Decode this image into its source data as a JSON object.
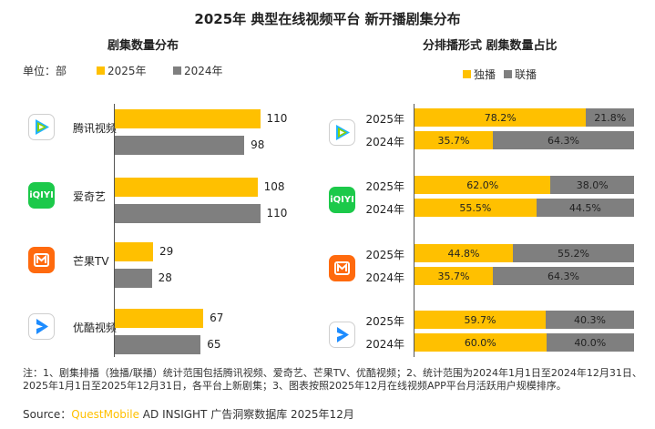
{
  "title": "2025年 典型在线视频平台 新开播剧集分布",
  "left_panel": {
    "title": "剧集数量分布",
    "unit_label": "单位：部",
    "legend": [
      {
        "label": "2025年",
        "color": "#ffc000"
      },
      {
        "label": "2024年",
        "color": "#7f7f7f"
      }
    ]
  },
  "right_panel": {
    "title": "分排播形式 剧集数量占比",
    "legend": [
      {
        "label": "独播",
        "color": "#ffc000"
      },
      {
        "label": "联播",
        "color": "#7f7f7f"
      }
    ]
  },
  "platforms": [
    {
      "name": "腾讯视频",
      "icon": "tencent-video-icon"
    },
    {
      "name": "爱奇艺",
      "icon": "iqiyi-icon",
      "icon_text": "iQIYI"
    },
    {
      "name": "芒果TV",
      "icon": "mango-tv-icon"
    },
    {
      "name": "优酷视频",
      "icon": "youku-icon"
    }
  ],
  "chart_data": [
    {
      "type": "bar",
      "title": "剧集数量分布",
      "categories": [
        "腾讯视频",
        "爱奇艺",
        "芒果TV",
        "优酷视频"
      ],
      "series": [
        {
          "name": "2025年",
          "values": [
            110,
            108,
            29,
            67
          ],
          "color": "#ffc000"
        },
        {
          "name": "2024年",
          "values": [
            98,
            110,
            28,
            65
          ],
          "color": "#7f7f7f"
        }
      ],
      "orientation": "horizontal"
    },
    {
      "type": "bar",
      "title": "分排播形式 剧集数量占比",
      "stacked": true,
      "orientation": "horizontal",
      "rows": [
        {
          "platform": "腾讯视频",
          "year": "2025年",
          "exclusive": "78.2%",
          "simulcast": "21.8%"
        },
        {
          "platform": "腾讯视频",
          "year": "2024年",
          "exclusive": "35.7%",
          "simulcast": "64.3%"
        },
        {
          "platform": "爱奇艺",
          "year": "2025年",
          "exclusive": "62.0%",
          "simulcast": "38.0%"
        },
        {
          "platform": "爱奇艺",
          "year": "2024年",
          "exclusive": "55.5%",
          "simulcast": "44.5%"
        },
        {
          "platform": "芒果TV",
          "year": "2025年",
          "exclusive": "44.8%",
          "simulcast": "55.2%"
        },
        {
          "platform": "芒果TV",
          "year": "2024年",
          "exclusive": "35.7%",
          "simulcast": "64.3%"
        },
        {
          "platform": "优酷视频",
          "year": "2025年",
          "exclusive": "59.7%",
          "simulcast": "40.3%"
        },
        {
          "platform": "优酷视频",
          "year": "2024年",
          "exclusive": "60.0%",
          "simulcast": "40.0%"
        }
      ],
      "series": [
        {
          "name": "独播",
          "color": "#ffc000"
        },
        {
          "name": "联播",
          "color": "#7f7f7f"
        }
      ]
    }
  ],
  "footnote": "注：1、剧集排播（独播/联播）统计范围包括腾讯视频、爱奇艺、芒果TV、优酷视频；2、统计范围为2024年1月1日至2024年12月31日、2025年1月1日至2025年12月31日，各平台上新剧集；3、图表按照2025年12月在线视频APP平台月活跃用户规模排序。",
  "source": {
    "prefix": "Source：",
    "brand": "QuestMobile",
    "text": " AD INSIGHT 广告洞察数据库 2025年12月"
  }
}
